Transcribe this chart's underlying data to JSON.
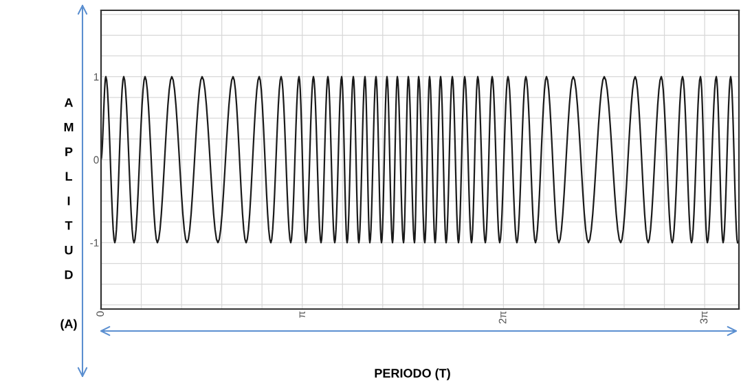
{
  "chart_data": {
    "type": "line",
    "xlabel": "PERIODO (T)",
    "ylabel": "AMPLITUD (A)",
    "x": [
      0,
      0.075,
      0.215,
      0.354,
      0.515,
      0.687,
      0.88,
      1.105,
      1.342,
      1.578,
      1.825,
      2.061,
      2.265,
      2.469,
      2.651,
      2.812,
      2.962,
      3.091,
      3.198,
      3.316,
      3.435,
      3.542,
      3.649,
      3.757,
      3.842,
      3.939,
      4.025,
      4.121,
      4.197,
      4.293,
      4.379,
      4.465,
      4.551,
      4.626,
      4.723,
      4.798,
      4.894,
      4.959,
      5.055,
      5.13,
      5.216,
      5.302,
      5.388,
      5.485,
      5.581,
      5.678,
      5.785,
      5.882,
      6.0,
      6.107,
      6.225,
      6.354,
      6.493,
      6.633,
      6.783,
      6.955,
      7.148,
      7.374,
      7.61,
      7.857,
      8.114,
      8.34,
      8.543,
      8.747,
      8.919,
      9.08,
      9.22,
      9.359,
      9.467,
      9.606,
      9.713,
      9.831,
      9.939
    ],
    "series": [
      {
        "color": "#1a1a1a",
        "values": [
          0,
          1,
          -1,
          1,
          -1,
          1,
          -1,
          1,
          -1,
          1,
          -1,
          1,
          -1,
          1,
          -1,
          1,
          -1,
          1,
          -1,
          1,
          -1,
          1,
          -1,
          1,
          -1,
          1,
          -1,
          1,
          -1,
          1,
          -1,
          1,
          -1,
          1,
          -1,
          1,
          -1,
          1,
          -1,
          1,
          -1,
          1,
          -1,
          1,
          -1,
          1,
          -1,
          1,
          -1,
          1,
          -1,
          1,
          -1,
          1,
          -1,
          1,
          -1,
          1,
          -1,
          1,
          -1,
          1,
          -1,
          1,
          -1,
          1,
          -1,
          1,
          -1,
          1,
          -1,
          1,
          -1
        ]
      }
    ],
    "xlim": [
      0,
      9.96
    ],
    "ylim": [
      -1.8,
      1.8
    ],
    "xticks": [
      {
        "value": 0,
        "label": "0"
      },
      {
        "value": 0.628,
        "label": null
      },
      {
        "value": 1.257,
        "label": null
      },
      {
        "value": 1.885,
        "label": null
      },
      {
        "value": 2.513,
        "label": null
      },
      {
        "value": 3.142,
        "label": "π"
      },
      {
        "value": 3.77,
        "label": null
      },
      {
        "value": 4.398,
        "label": null
      },
      {
        "value": 5.027,
        "label": null
      },
      {
        "value": 5.655,
        "label": null
      },
      {
        "value": 6.283,
        "label": "2π"
      },
      {
        "value": 6.912,
        "label": null
      },
      {
        "value": 7.54,
        "label": null
      },
      {
        "value": 8.168,
        "label": null
      },
      {
        "value": 8.796,
        "label": null
      },
      {
        "value": 9.425,
        "label": "3π"
      }
    ],
    "yticks": [
      {
        "value": -1.75,
        "label": null
      },
      {
        "value": -1.5,
        "label": null
      },
      {
        "value": -1.25,
        "label": null
      },
      {
        "value": -1,
        "label": "-1"
      },
      {
        "value": -0.75,
        "label": null
      },
      {
        "value": -0.5,
        "label": null
      },
      {
        "value": -0.25,
        "label": null
      },
      {
        "value": 0,
        "label": "0"
      },
      {
        "value": 0.25,
        "label": null
      },
      {
        "value": 0.5,
        "label": null
      },
      {
        "value": 0.75,
        "label": null
      },
      {
        "value": 1,
        "label": "1"
      },
      {
        "value": 1.25,
        "label": null
      },
      {
        "value": 1.5,
        "label": null
      },
      {
        "value": 1.75,
        "label": null
      }
    ],
    "grid": true,
    "marker": "none",
    "line_style": "solid"
  }
}
